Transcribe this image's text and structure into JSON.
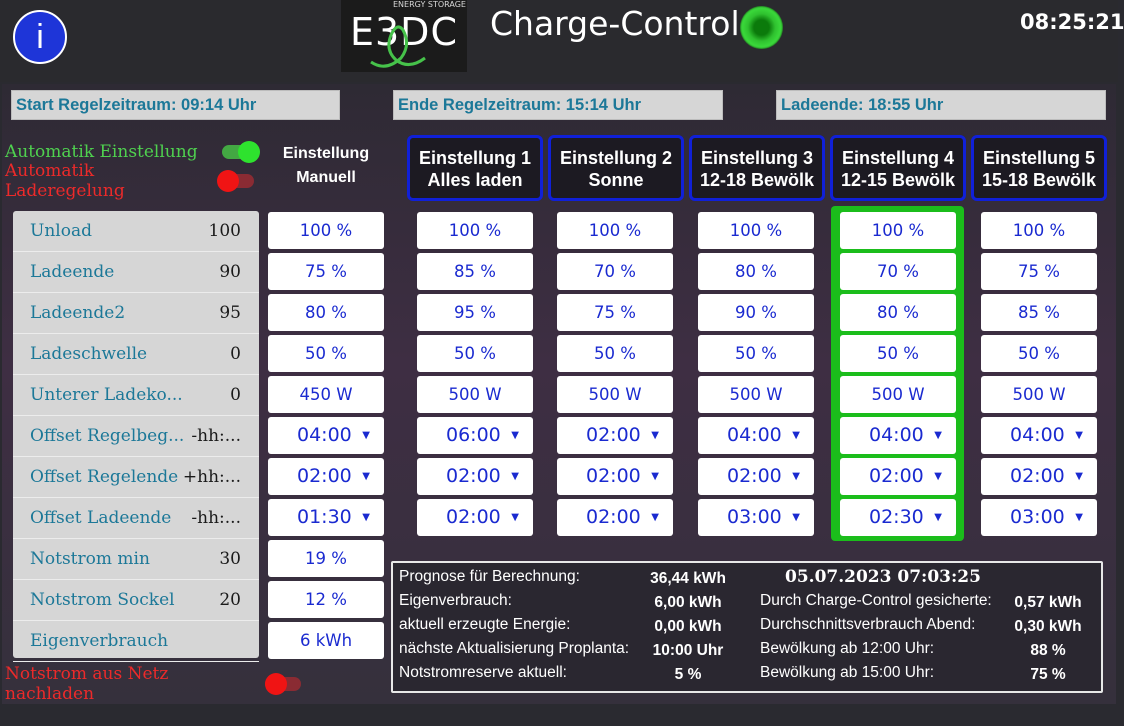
{
  "header": {
    "logo_letters": "E3DC",
    "logo_sub": "ENERGY STORAGE",
    "title": "Charge-Control",
    "clock": "08:25:21",
    "colors": {
      "info_button": "#1e35d8",
      "status_led": "#2fc12f"
    }
  },
  "periods": {
    "start": "Start Regelzeitraum: 09:14 Uhr",
    "end": "Ende Regelzeitraum: 15:14 Uhr",
    "ladeende": "Ladeende: 18:55 Uhr"
  },
  "modes": {
    "automatik_einstellung": "Automatik Einstellung",
    "automatik_laderegelung": "Automatik Laderegelung",
    "notstrom_netz": "Notstrom aus Netz nachladen"
  },
  "manual_column": {
    "line1": "Einstellung",
    "line2": "Manuell"
  },
  "parameters": [
    {
      "label": "Unload",
      "value": "100"
    },
    {
      "label": "Ladeende",
      "value": "90"
    },
    {
      "label": "Ladeende2",
      "value": "95"
    },
    {
      "label": "Ladeschwelle",
      "value": "0"
    },
    {
      "label": "Unterer Ladeko...",
      "value": "0"
    },
    {
      "label": "Offset Regelbeg...",
      "value": "-hh:..."
    },
    {
      "label": "Offset Regelende",
      "value": "+hh:..."
    },
    {
      "label": "Offset Ladeende",
      "value": "-hh:..."
    },
    {
      "label": "Notstrom min",
      "value": "30"
    },
    {
      "label": "Notstrom Sockel",
      "value": "20"
    },
    {
      "label": "Eigenverbrauch",
      "value": ""
    }
  ],
  "manual_values": [
    "100 %",
    "75 %",
    "80 %",
    "50 %",
    "450 W",
    "04:00",
    "02:00",
    "01:30",
    "19 %",
    "12 %",
    "6 kWh"
  ],
  "presets": [
    {
      "line1": "Einstellung 1",
      "line2": "Alles laden",
      "values": [
        "100 %",
        "85 %",
        "95 %",
        "50 %",
        "500 W",
        "06:00",
        "02:00",
        "02:00"
      ]
    },
    {
      "line1": "Einstellung 2",
      "line2": "Sonne",
      "values": [
        "100 %",
        "70 %",
        "75 %",
        "50 %",
        "500 W",
        "02:00",
        "02:00",
        "02:00"
      ]
    },
    {
      "line1": "Einstellung 3",
      "line2": "12-18 Bewölk",
      "values": [
        "100 %",
        "80 %",
        "90 %",
        "50 %",
        "500 W",
        "04:00",
        "02:00",
        "03:00"
      ]
    },
    {
      "line1": "Einstellung 4",
      "line2": "12-15 Bewölk",
      "values": [
        "100 %",
        "70 %",
        "80 %",
        "50 %",
        "500 W",
        "04:00",
        "02:00",
        "02:30"
      ],
      "active": true
    },
    {
      "line1": "Einstellung 5",
      "line2": "15-18 Bewölk",
      "values": [
        "100 %",
        "75 %",
        "85 %",
        "50 %",
        "500 W",
        "04:00",
        "02:00",
        "03:00"
      ]
    }
  ],
  "forecast": {
    "date": "05.07.2023 07:03:25",
    "left": [
      {
        "label": "Prognose für Berechnung:",
        "value": "36,44 kWh"
      },
      {
        "label": "Eigenverbrauch:",
        "value": "6,00 kWh"
      },
      {
        "label": "aktuell erzeugte Energie:",
        "value": "0,00 kWh"
      },
      {
        "label": "nächste Aktualisierung Proplanta:",
        "value": "10:00 Uhr"
      },
      {
        "label": "Notstromreserve aktuell:",
        "value": "5 %"
      }
    ],
    "right": [
      {
        "label": "Durch Charge-Control gesicherte:",
        "value": "0,57 kWh"
      },
      {
        "label": "Durchschnittsverbrauch Abend:",
        "value": "0,30 kWh"
      },
      {
        "label": "Bewölkung ab 12:00 Uhr:",
        "value": "88 %"
      },
      {
        "label": "Bewölkung ab 15:00 Uhr:",
        "value": "75 %"
      }
    ]
  }
}
